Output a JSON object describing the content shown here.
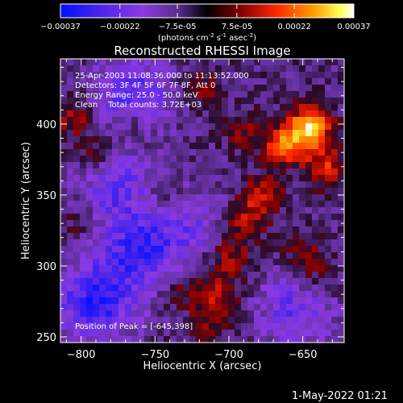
{
  "colorbar": {
    "tick_labels": [
      "-0.00037",
      "-0.00022",
      "-7.5e-05",
      "7.5e-05",
      "0.00022",
      "0.00037"
    ],
    "min": -0.00037,
    "max": 0.00037,
    "unit_label": "(photons cm-2 s-1 asec-2)",
    "unit_main": "(photons cm",
    "unit_e1": "-2",
    "unit_mid1": " s",
    "unit_e2": "-1",
    "unit_mid2": " asec",
    "unit_e3": "-2",
    "unit_end": ")"
  },
  "chart_data": {
    "type": "heatmap",
    "title": "Reconstructed RHESSI Image",
    "xlabel": "Heliocentric X (arcsec)",
    "ylabel": "Heliocentric Y (arcsec)",
    "xlim": [
      -814,
      -622
    ],
    "ylim": [
      246,
      446
    ],
    "x_ticks": [
      -800,
      -750,
      -700,
      -650
    ],
    "y_ticks": [
      250,
      300,
      350,
      400
    ],
    "annotations": [
      "25-Apr-2003 11:08:36.000 to 11:13:52.000",
      "Detectors: 3F 4F 5F 6F 7F 8F, Att 0",
      "Energy Range: 25.0 - 50.0 keV",
      "Clean    Total counts: 3.72E+03"
    ],
    "peak_label": "Position of Peak = [-645,398]",
    "peak_position": [
      -645,
      398
    ],
    "colormap": [
      "#0000ff",
      "#7a3ce0",
      "#5a2e9a",
      "#000000",
      "#a00000",
      "#ff3000",
      "#ff9a00",
      "#ffff40",
      "#ffffff"
    ],
    "emission_sources": [
      {
        "x": -645,
        "y": 398,
        "intensity": 0.00037
      },
      {
        "x": -662,
        "y": 385,
        "intensity": 0.00026
      },
      {
        "x": -635,
        "y": 370,
        "intensity": 0.0002
      },
      {
        "x": -678,
        "y": 350,
        "intensity": 0.00018
      },
      {
        "x": -690,
        "y": 330,
        "intensity": 0.00016
      },
      {
        "x": -700,
        "y": 305,
        "intensity": 0.00015
      },
      {
        "x": -706,
        "y": 280,
        "intensity": 0.00013
      },
      {
        "x": -712,
        "y": 262,
        "intensity": 0.00012
      },
      {
        "x": -730,
        "y": 285,
        "intensity": 0.0001
      },
      {
        "x": -650,
        "y": 310,
        "intensity": 0.00012
      },
      {
        "x": -640,
        "y": 290,
        "intensity": 0.0001
      },
      {
        "x": -805,
        "y": 405,
        "intensity": 0.00014
      },
      {
        "x": -790,
        "y": 380,
        "intensity": 0.0001
      },
      {
        "x": -765,
        "y": 400,
        "intensity": 0.0001
      },
      {
        "x": -720,
        "y": 425,
        "intensity": 0.00012
      },
      {
        "x": -690,
        "y": 395,
        "intensity": 0.0001
      },
      {
        "x": -745,
        "y": 350,
        "intensity": 8e-05
      },
      {
        "x": -800,
        "y": 330,
        "intensity": 7e-05
      }
    ],
    "absorption_regions": [
      {
        "x": -790,
        "y": 275,
        "intensity": -0.00025
      },
      {
        "x": -760,
        "y": 310,
        "intensity": -0.00022
      },
      {
        "x": -765,
        "y": 420,
        "intensity": -0.0002
      },
      {
        "x": -775,
        "y": 355,
        "intensity": -0.00016
      },
      {
        "x": -655,
        "y": 270,
        "intensity": -0.00016
      },
      {
        "x": -725,
        "y": 330,
        "intensity": -0.00012
      }
    ]
  },
  "footer": {
    "timestamp": "1-May-2022 01:21"
  }
}
